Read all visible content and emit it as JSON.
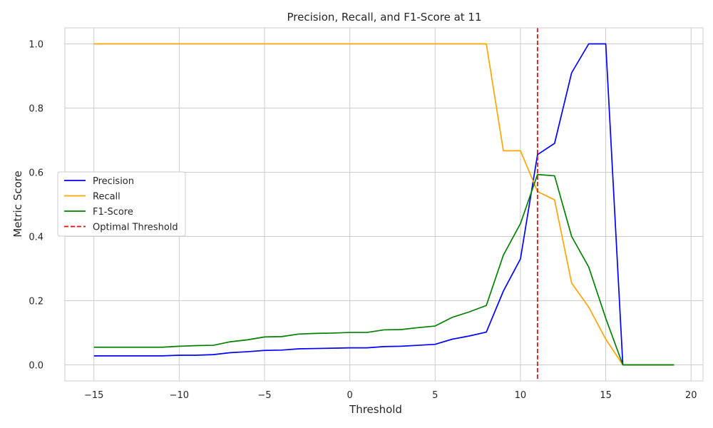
{
  "chart_data": {
    "type": "line",
    "title": "Precision, Recall, and F1-Score at 11",
    "xlabel": "Threshold",
    "ylabel": "Metric Score",
    "xlim": [
      -16.7,
      20.7
    ],
    "ylim": [
      -0.05,
      1.05
    ],
    "xticks": [
      -15,
      -10,
      -5,
      0,
      5,
      10,
      15,
      20
    ],
    "yticks": [
      0.0,
      0.2,
      0.4,
      0.6,
      0.8,
      1.0
    ],
    "xtick_labels": [
      "−15",
      "−10",
      "−5",
      "0",
      "5",
      "10",
      "15",
      "20"
    ],
    "ytick_labels": [
      "0.0",
      "0.2",
      "0.4",
      "0.6",
      "0.8",
      "1.0"
    ],
    "grid": true,
    "legend_position": "center-left",
    "x": [
      -15,
      -14,
      -13,
      -12,
      -11,
      -10,
      -9,
      -8,
      -7,
      -6,
      -5,
      -4,
      -3,
      -2,
      -1,
      0,
      1,
      2,
      3,
      4,
      5,
      6,
      7,
      8,
      9,
      10,
      11,
      12,
      13,
      14,
      15,
      16,
      17,
      18,
      19
    ],
    "series": [
      {
        "name": "Precision",
        "color": "#0000ff",
        "dash": "solid",
        "values": [
          0.028,
          0.028,
          0.028,
          0.028,
          0.028,
          0.03,
          0.03,
          0.032,
          0.038,
          0.041,
          0.045,
          0.046,
          0.05,
          0.051,
          0.052,
          0.053,
          0.053,
          0.057,
          0.058,
          0.061,
          0.064,
          0.08,
          0.09,
          0.102,
          0.23,
          0.33,
          0.655,
          0.69,
          0.91,
          1.0,
          1.0,
          0.0,
          0.0,
          0.0,
          0.0
        ]
      },
      {
        "name": "Recall",
        "color": "#ffa500",
        "dash": "solid",
        "values": [
          1,
          1,
          1,
          1,
          1,
          1,
          1,
          1,
          1,
          1,
          1,
          1,
          1,
          1,
          1,
          1,
          1,
          1,
          1,
          1,
          1,
          1,
          1,
          1,
          0.667,
          0.667,
          0.54,
          0.514,
          0.255,
          0.18,
          0.08,
          0.0,
          0.0,
          0.0,
          0.0
        ]
      },
      {
        "name": "F1-Score",
        "color": "#008000",
        "dash": "solid",
        "values": [
          0.055,
          0.055,
          0.055,
          0.055,
          0.055,
          0.058,
          0.06,
          0.061,
          0.072,
          0.078,
          0.087,
          0.088,
          0.096,
          0.098,
          0.099,
          0.101,
          0.101,
          0.109,
          0.11,
          0.116,
          0.121,
          0.148,
          0.165,
          0.185,
          0.342,
          0.44,
          0.593,
          0.589,
          0.4,
          0.305,
          0.145,
          0.0,
          0.0,
          0.0,
          0.0
        ]
      }
    ],
    "vlines": [
      {
        "name": "Optimal Threshold",
        "x": 11,
        "color": "#ff0000",
        "dash": "dashed"
      }
    ]
  }
}
